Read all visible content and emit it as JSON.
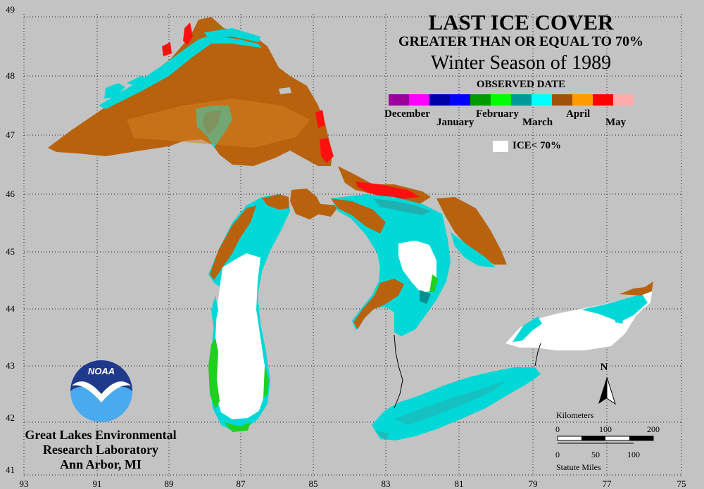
{
  "title": "LAST ICE COVER",
  "subtitle": "GREATER THAN OR EQUAL TO 70%",
  "season": "Winter Season of 1989",
  "legend": {
    "heading": "OBSERVED DATE",
    "months": [
      "December",
      "January",
      "February",
      "March",
      "April",
      "May"
    ],
    "colors": [
      "#9b009b",
      "#ff00ff",
      "#0000aa",
      "#0000ff",
      "#009900",
      "#00ff00",
      "#009999",
      "#00ffff",
      "#a0520a",
      "#ff9a00",
      "#ff0000",
      "#ffaaaa"
    ],
    "ice_label": "ICE< 70%"
  },
  "axes": {
    "longitude": [
      "93",
      "91",
      "89",
      "87",
      "85",
      "83",
      "81",
      "79",
      "77",
      "75"
    ],
    "latitude": [
      "49",
      "48",
      "47",
      "46",
      "45",
      "44",
      "43",
      "42",
      "41"
    ]
  },
  "org": {
    "line1": "Great Lakes Environmental",
    "line2": "Research Laboratory",
    "line3": "Ann Arbor, MI",
    "logo_text": "NOAA"
  },
  "north": "N",
  "scale": {
    "km_label": "Kilometers",
    "km_ticks": [
      "0",
      "100",
      "200"
    ],
    "mi_ticks": [
      "0",
      "50",
      "100"
    ],
    "mi_label": "Statute Miles"
  }
}
